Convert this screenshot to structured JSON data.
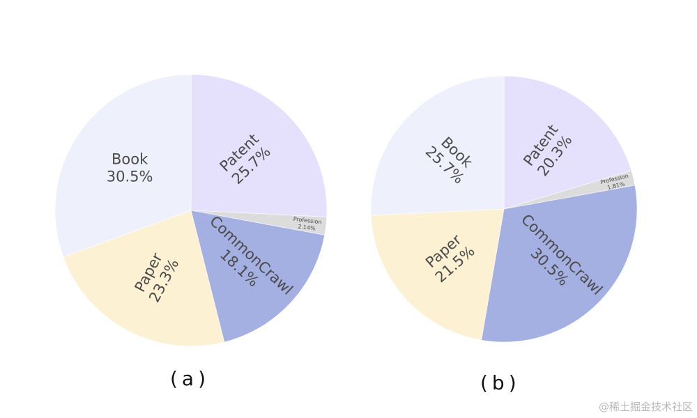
{
  "chart_data": [
    {
      "type": "pie",
      "caption": "(a)",
      "start_angle_deg": 90,
      "direction": "clockwise",
      "slices": [
        {
          "label": "Patent",
          "value": 25.7,
          "pct_text": "25.7%",
          "color": "#e5e0fb"
        },
        {
          "label": "Profession",
          "value": 2.14,
          "pct_text": "2.14%",
          "color": "#dcdcdc"
        },
        {
          "label": "CommonCrawl",
          "value": 18.1,
          "pct_text": "18.1%",
          "color": "#a5b0e2"
        },
        {
          "label": "Paper",
          "value": 23.3,
          "pct_text": "23.3%",
          "color": "#fdf1d3"
        },
        {
          "label": "Book",
          "value": 30.5,
          "pct_text": "30.5%",
          "color": "#eef1fb"
        }
      ]
    },
    {
      "type": "pie",
      "caption": "(b)",
      "start_angle_deg": 90,
      "direction": "clockwise",
      "slices": [
        {
          "label": "Patent",
          "value": 20.3,
          "pct_text": "20.3%",
          "color": "#e5e0fb"
        },
        {
          "label": "Profession",
          "value": 1.81,
          "pct_text": "1.81%",
          "color": "#dcdcdc"
        },
        {
          "label": "CommonCrawl",
          "value": 30.5,
          "pct_text": "30.5%",
          "color": "#a5b0e2"
        },
        {
          "label": "Paper",
          "value": 21.5,
          "pct_text": "21.5%",
          "color": "#fdf1d3"
        },
        {
          "label": "Book",
          "value": 25.7,
          "pct_text": "25.7%",
          "color": "#eef1fb"
        }
      ]
    }
  ],
  "watermark": "@稀土掘金技术社区"
}
